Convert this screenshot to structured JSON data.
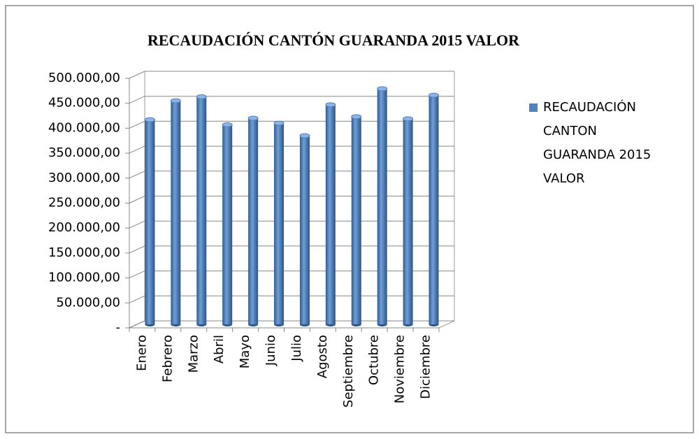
{
  "chart_data": {
    "type": "bar",
    "title": "RECAUDACIÓN CANTÓN GUARANDA 2015 VALOR",
    "categories": [
      "Enero",
      "Febrero",
      "Marzo",
      "Abril",
      "Mayo",
      "Junio",
      "Julio",
      "Agosto",
      "Septiembre",
      "Octubre",
      "Noviembre",
      "Diciembre"
    ],
    "series": [
      {
        "name": "RECAUDACIÓN CANTON GUARANDA 2015 VALOR",
        "color": "#4f81bd",
        "values": [
          410000,
          448000,
          456000,
          400000,
          413000,
          403000,
          378000,
          440000,
          416000,
          472000,
          412000,
          459000
        ]
      }
    ],
    "ylim": [
      0,
      500000
    ],
    "yticks": [
      {
        "value": 0,
        "label": "-"
      },
      {
        "value": 50000,
        "label": "50.000,00"
      },
      {
        "value": 100000,
        "label": "100.000,00"
      },
      {
        "value": 150000,
        "label": "150.000,00"
      },
      {
        "value": 200000,
        "label": "200.000,00"
      },
      {
        "value": 250000,
        "label": "250.000,00"
      },
      {
        "value": 300000,
        "label": "300.000,00"
      },
      {
        "value": 350000,
        "label": "350.000,00"
      },
      {
        "value": 400000,
        "label": "400.000,00"
      },
      {
        "value": 450000,
        "label": "450.000,00"
      },
      {
        "value": 500000,
        "label": "500.000,00"
      }
    ],
    "grid": true,
    "legend": "right"
  }
}
